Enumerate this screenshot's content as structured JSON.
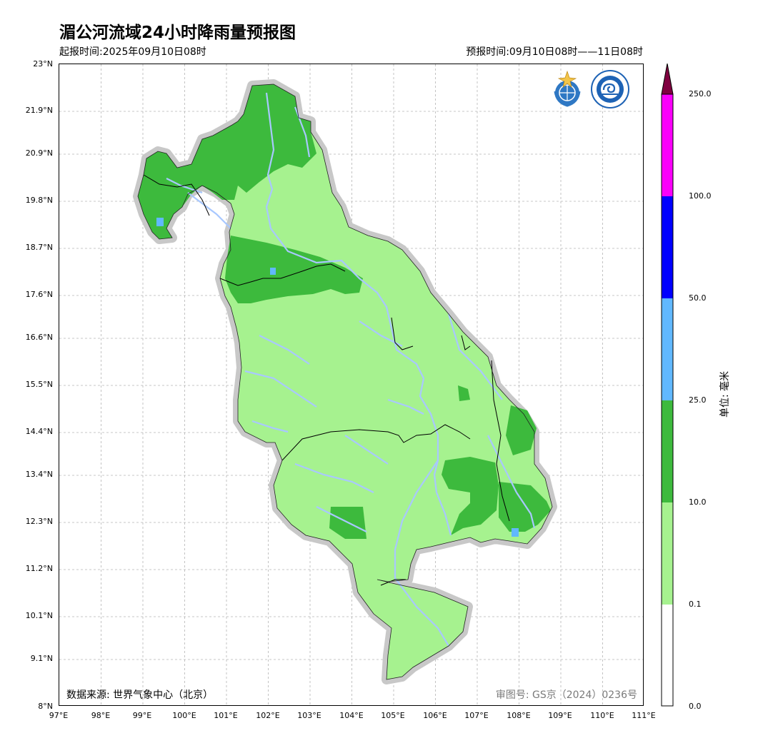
{
  "title": "湄公河流域24小时降雨量预报图",
  "issue_time": "起报时间:2025年09月10日08时",
  "forecast_period": "预报时间:09月10日08时——11日08时",
  "y_ticks": [
    "23°N",
    "21.9°N",
    "20.9°N",
    "19.8°N",
    "18.7°N",
    "17.6°N",
    "16.6°N",
    "15.5°N",
    "14.4°N",
    "13.4°N",
    "12.3°N",
    "11.2°N",
    "10.1°N",
    "9.1°N",
    "8°N"
  ],
  "x_ticks": [
    "97°E",
    "98°E",
    "99°E",
    "100°E",
    "101°E",
    "102°E",
    "103°E",
    "104°E",
    "105°E",
    "106°E",
    "107°E",
    "108°E",
    "109°E",
    "110°E",
    "111°E"
  ],
  "data_source": "数据来源: 世界气象中心（北京）",
  "review_number": "审图号: GS京（2024）0236号",
  "colorbar": {
    "unit": "单位: 毫米",
    "levels": [
      "0.0",
      "0.1",
      "10.0",
      "25.0",
      "50.0",
      "100.0",
      "250.0"
    ],
    "colors": [
      "#ffffff",
      "#a6f28f",
      "#3dba3d",
      "#61b8ff",
      "#0000ff",
      "#fa00fa",
      "#800040"
    ]
  },
  "logos": [
    "wmo-emblem",
    "cma-emblem"
  ]
}
